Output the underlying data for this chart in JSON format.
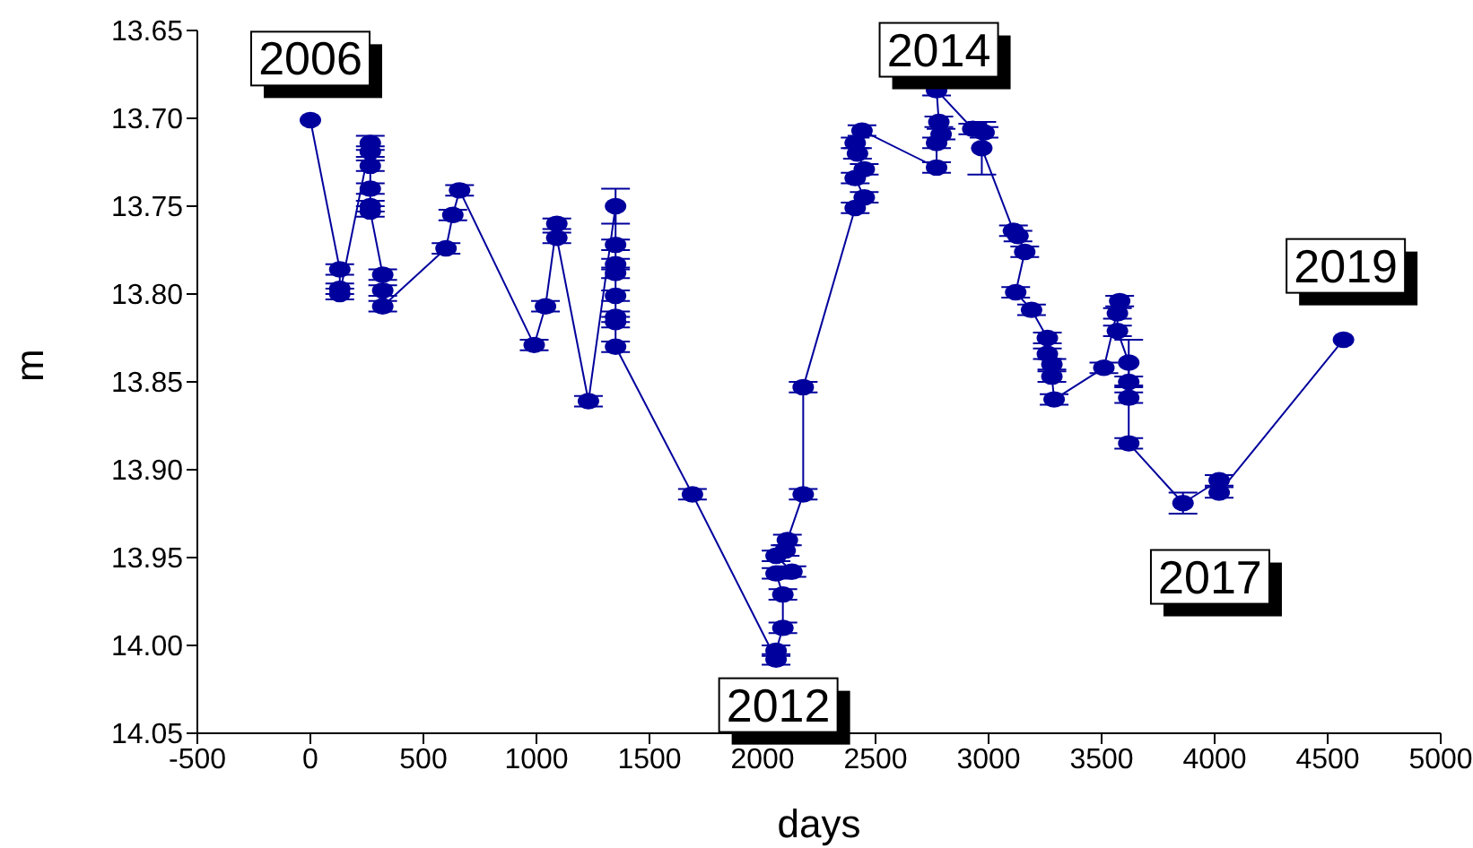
{
  "chart_data": {
    "type": "line",
    "xlabel": "days",
    "ylabel": "m",
    "x": [
      0,
      130,
      130,
      130,
      265,
      265,
      265,
      265,
      265,
      265,
      320,
      320,
      320,
      600,
      630,
      660,
      990,
      1040,
      1090,
      1090,
      1230,
      1350,
      1350,
      1350,
      1350,
      1350,
      1350,
      1350,
      1350,
      1690,
      2060,
      2060,
      2090,
      2090,
      2060,
      2130,
      2060,
      2100,
      2110,
      2180,
      2180,
      2410,
      2450,
      2410,
      2450,
      2420,
      2410,
      2440,
      2770,
      2770,
      2790,
      2780,
      2770,
      2930,
      2980,
      2970,
      3110,
      3130,
      3160,
      3120,
      3190,
      3260,
      3260,
      3280,
      3280,
      3290,
      3510,
      3580,
      3570,
      3570,
      3620,
      3620,
      3620,
      3620,
      3860,
      4020,
      4020,
      4570
    ],
    "series": [
      {
        "color": "#00009c",
        "values": [
          13.701,
          13.786,
          13.797,
          13.8,
          13.714,
          13.719,
          13.727,
          13.74,
          13.75,
          13.753,
          13.789,
          13.798,
          13.807,
          13.774,
          13.755,
          13.741,
          13.829,
          13.807,
          13.76,
          13.768,
          13.861,
          13.75,
          13.772,
          13.783,
          13.788,
          13.801,
          13.813,
          13.816,
          13.83,
          13.914,
          14.008,
          14.003,
          13.99,
          13.971,
          13.959,
          13.958,
          13.949,
          13.946,
          13.94,
          13.914,
          13.853,
          13.751,
          13.745,
          13.734,
          13.729,
          13.72,
          13.714,
          13.707,
          13.728,
          13.714,
          13.709,
          13.702,
          13.684,
          13.706,
          13.708,
          13.717,
          13.764,
          13.767,
          13.776,
          13.799,
          13.809,
          13.825,
          13.834,
          13.84,
          13.847,
          13.86,
          13.842,
          13.804,
          13.811,
          13.821,
          13.839,
          13.85,
          13.859,
          13.885,
          13.919,
          13.906,
          13.913,
          13.826
        ],
        "errors": [
          null,
          0.003,
          0.003,
          0.003,
          0.004,
          0.003,
          0.003,
          0.003,
          0.003,
          0.003,
          0.003,
          0.003,
          0.003,
          0.003,
          0.003,
          0.003,
          0.003,
          0.003,
          0.003,
          0.003,
          0.003,
          0.01,
          0.003,
          0.003,
          0.003,
          0.003,
          0.003,
          0.003,
          0.003,
          0.003,
          0.003,
          0.003,
          0.003,
          0.003,
          0.003,
          0.003,
          0.003,
          0.003,
          0.003,
          0.003,
          0.003,
          0.003,
          0.003,
          0.003,
          0.003,
          0.003,
          0.003,
          0.003,
          0.003,
          0.003,
          0.003,
          0.003,
          0.003,
          0.003,
          0.003,
          0.015,
          0.003,
          0.003,
          0.003,
          0.003,
          0.003,
          0.003,
          0.003,
          0.003,
          0.003,
          0.003,
          0.003,
          0.003,
          0.003,
          0.003,
          0.013,
          0.003,
          0.003,
          0.003,
          0.006,
          0.003,
          0.003,
          null
        ]
      }
    ],
    "xlim": [
      -500,
      5000
    ],
    "xticks": [
      -500,
      0,
      500,
      1000,
      1500,
      2000,
      2500,
      3000,
      3500,
      4000,
      4500,
      5000
    ],
    "ylim": [
      14.05,
      13.65
    ],
    "yticks": [
      {
        "value": 13.65,
        "label": "13.65"
      },
      {
        "value": 13.7,
        "label": "13.70"
      },
      {
        "value": 13.75,
        "label": "13.75"
      },
      {
        "value": 13.8,
        "label": "13.80"
      },
      {
        "value": 13.85,
        "label": "13.85"
      },
      {
        "value": 13.9,
        "label": "13.90"
      },
      {
        "value": 13.95,
        "label": "13.95"
      },
      {
        "value": 14.0,
        "label": "14.00"
      },
      {
        "value": 14.05,
        "label": "14.05"
      }
    ],
    "marker": "circle",
    "line_style": "solid",
    "grid": false,
    "legend": false,
    "annotations": [
      "2006",
      "2012",
      "2014",
      "2017",
      "2019"
    ]
  }
}
